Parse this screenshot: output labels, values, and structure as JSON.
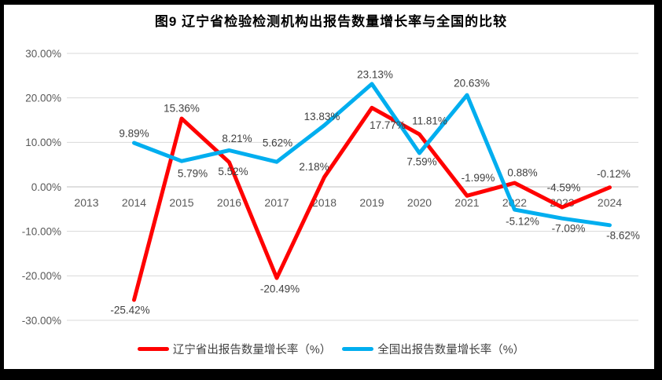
{
  "chart_data": {
    "type": "line",
    "title": "图9  辽宁省检验检测机构出报告数量增长率与全国的比较",
    "categories": [
      "2013",
      "2014",
      "2015",
      "2016",
      "2017",
      "2018",
      "2019",
      "2020",
      "2021",
      "2022",
      "2023",
      "2024"
    ],
    "series": [
      {
        "name": "辽宁省出报告数量增长率（%）",
        "color": "#FF0000",
        "values": [
          null,
          -25.42,
          15.36,
          5.52,
          -20.49,
          2.18,
          17.77,
          11.81,
          -1.99,
          0.88,
          -4.59,
          -0.12
        ]
      },
      {
        "name": "全国出报告数量增长率（%）",
        "color": "#00AEEF",
        "values": [
          null,
          9.89,
          5.79,
          8.21,
          5.62,
          13.83,
          23.13,
          7.59,
          20.63,
          -5.12,
          -7.09,
          -8.62
        ]
      }
    ],
    "y_ticks": [
      "30.00%",
      "20.00%",
      "10.00%",
      "0.00%",
      "-10.00%",
      "-20.00%",
      "-30.00%"
    ],
    "ylim": [
      -30,
      30
    ],
    "grid": true,
    "legend_position": "bottom",
    "data_label_format": "0.00%",
    "colors": {
      "gridline": "#D9D9D9",
      "zero_line": "#BFBFBF",
      "axis_text": "#595959",
      "data_label_text": "#404040",
      "frame_border": "#000000"
    }
  }
}
